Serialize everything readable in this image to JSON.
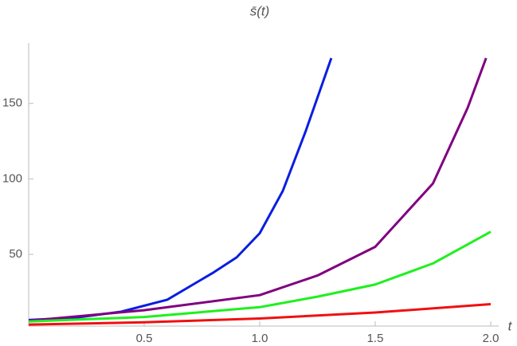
{
  "chart_data": {
    "type": "line",
    "title": "s̄(t)",
    "x_label": "t",
    "xlim": [
      0,
      2
    ],
    "xticks": [
      0.5,
      {
        "value": 1,
        "label": "1.0"
      },
      1.5,
      {
        "value": 2,
        "label": "2.0"
      }
    ],
    "ylim": [
      2.5,
      190
    ],
    "yticks": [
      50,
      100,
      150
    ],
    "series": [
      {
        "color": "#0a1ee0",
        "x": [
          0,
          0.2,
          0.4,
          0.6,
          0.8,
          0.9,
          1.0,
          1.1,
          1.2,
          1.31
        ],
        "values": [
          6.5,
          8,
          12,
          20,
          38,
          48,
          64,
          92,
          132,
          180
        ]
      },
      {
        "color": "#800080",
        "x": [
          0,
          0.5,
          1.0,
          1.25,
          1.5,
          1.75,
          1.9,
          1.98
        ],
        "values": [
          6,
          13,
          23,
          36,
          55,
          97,
          147,
          180
        ]
      },
      {
        "color": "#1ef01e",
        "x": [
          0,
          0.5,
          1.0,
          1.25,
          1.5,
          1.75,
          2.0
        ],
        "values": [
          5.5,
          8.5,
          15,
          22,
          30,
          44,
          65
        ]
      },
      {
        "color": "#f01010",
        "x": [
          0,
          0.5,
          1.0,
          1.5,
          2.0
        ],
        "values": [
          3.5,
          5,
          7.5,
          11.5,
          17
        ]
      }
    ]
  }
}
